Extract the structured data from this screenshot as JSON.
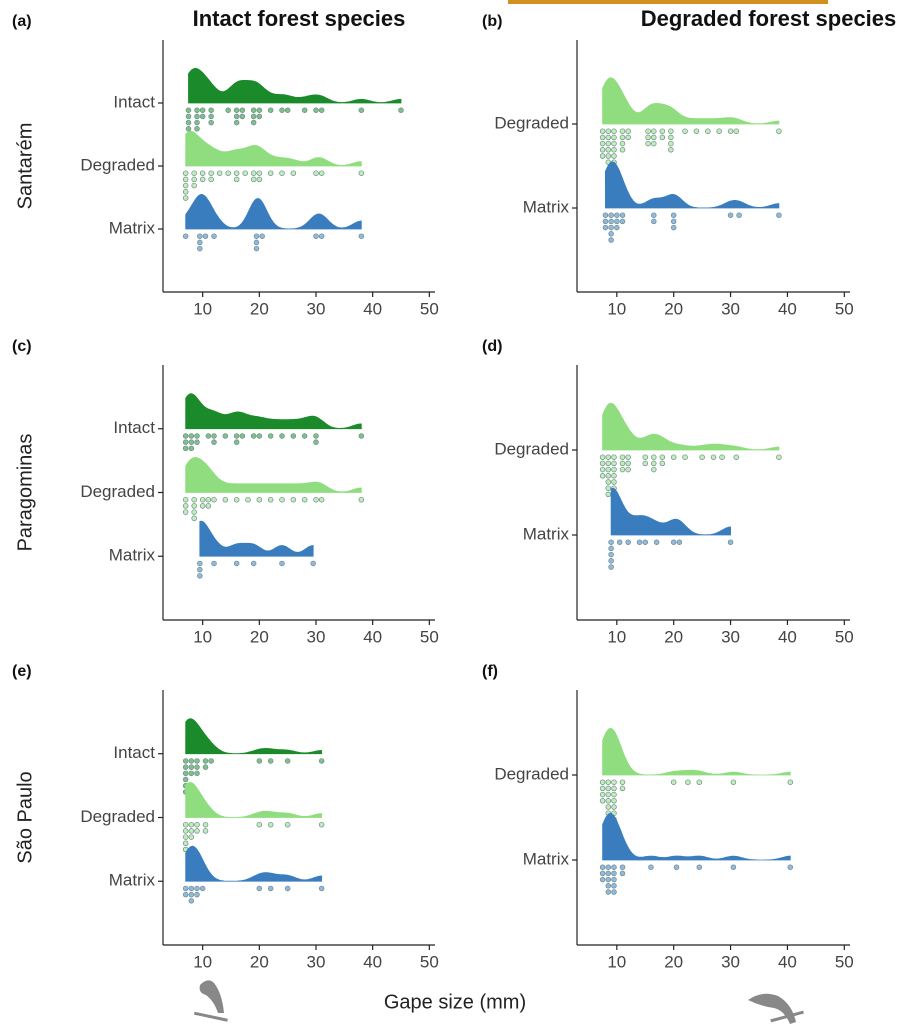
{
  "xlabel": "Gape size (mm)",
  "chart_data": [
    {
      "type": "raincloud",
      "panel_label": "(a)",
      "title": "Intact forest species",
      "ylabel": "Santarém",
      "xlim": [
        3,
        51
      ],
      "xticks": [
        10,
        20,
        30,
        40,
        50
      ],
      "series": [
        {
          "name": "Intact",
          "color": "#1a8a2a",
          "values": [
            7.5,
            7.5,
            7.5,
            7.5,
            7.5,
            9,
            9,
            9,
            9,
            10,
            10,
            11.5,
            11.5,
            11.5,
            14.5,
            16,
            16,
            16,
            17,
            17,
            19,
            19,
            19,
            20,
            20,
            22,
            24,
            25,
            28,
            30,
            31,
            38,
            45
          ]
        },
        {
          "name": "Degraded",
          "color": "#90dd7f",
          "values": [
            7,
            7,
            7,
            7,
            7,
            8.5,
            8.5,
            8.5,
            10,
            10,
            11.5,
            11.5,
            13,
            14.5,
            16,
            16,
            17.5,
            19,
            19,
            20,
            20,
            22,
            24,
            26,
            30,
            31,
            38
          ]
        },
        {
          "name": "Matrix",
          "color": "#3a7dbf",
          "values": [
            7,
            9.5,
            9.5,
            9.5,
            10.5,
            12,
            19.5,
            19.5,
            19.5,
            20.5,
            30,
            31,
            38
          ]
        }
      ]
    },
    {
      "type": "raincloud",
      "panel_label": "(b)",
      "title": "Degraded forest species",
      "xlim": [
        3,
        51
      ],
      "xticks": [
        10,
        20,
        30,
        40,
        50
      ],
      "series": [
        {
          "name": "Degraded",
          "color": "#90dd7f",
          "values": [
            7.5,
            7.5,
            7.5,
            7.5,
            7.5,
            8.5,
            8.5,
            8.5,
            8.5,
            8.5,
            8.5,
            9.5,
            9.5,
            9.5,
            9.5,
            9.5,
            9.5,
            11,
            11,
            11,
            11,
            12,
            12,
            15.5,
            15.5,
            15.5,
            16.5,
            16.5,
            16.5,
            18,
            18,
            19.5,
            19.5,
            19.5,
            19.5,
            22,
            24,
            26,
            28,
            30,
            31,
            38.5
          ]
        },
        {
          "name": "Matrix",
          "color": "#3a7dbf",
          "values": [
            8,
            8,
            8,
            9,
            9,
            9,
            9,
            9,
            10,
            10,
            10,
            11,
            11,
            16.5,
            16.5,
            20,
            20,
            20,
            30,
            31.5,
            38.5
          ]
        }
      ]
    },
    {
      "type": "raincloud",
      "panel_label": "(c)",
      "ylabel": "Paragominas",
      "xlim": [
        3,
        51
      ],
      "xticks": [
        10,
        20,
        30,
        40,
        50
      ],
      "series": [
        {
          "name": "Intact",
          "color": "#1a8a2a",
          "values": [
            7,
            7,
            7,
            8,
            8,
            8,
            9,
            9,
            11,
            12,
            12,
            14,
            16,
            16,
            17,
            19,
            20,
            22,
            24,
            26,
            28,
            30,
            30,
            38
          ]
        },
        {
          "name": "Degraded",
          "color": "#90dd7f",
          "values": [
            7,
            7,
            7,
            8.5,
            8.5,
            8.5,
            8.5,
            10,
            10,
            11,
            11,
            12,
            14,
            16,
            18,
            20,
            22,
            24,
            26,
            28,
            30,
            31,
            38
          ]
        },
        {
          "name": "Matrix",
          "color": "#3a7dbf",
          "values": [
            9.5,
            9.5,
            9.5,
            12,
            16,
            19,
            24,
            29.5
          ]
        }
      ]
    },
    {
      "type": "raincloud",
      "panel_label": "(d)",
      "xlim": [
        3,
        51
      ],
      "xticks": [
        10,
        20,
        30,
        40,
        50
      ],
      "series": [
        {
          "name": "Degraded",
          "color": "#90dd7f",
          "values": [
            7.5,
            7.5,
            7.5,
            7.5,
            8.5,
            8.5,
            8.5,
            8.5,
            8.5,
            8.5,
            8.5,
            9.5,
            9.5,
            9.5,
            9.5,
            9.5,
            9.5,
            11,
            11,
            11,
            12,
            12,
            12,
            15,
            15,
            16.5,
            16.5,
            16.5,
            18,
            18,
            20,
            22,
            25,
            27,
            28.5,
            31,
            38.5
          ]
        },
        {
          "name": "Matrix",
          "color": "#3a7dbf",
          "values": [
            9,
            9,
            9,
            9,
            9,
            10.5,
            12,
            14,
            15,
            17,
            20,
            21,
            30
          ]
        }
      ]
    },
    {
      "type": "raincloud",
      "panel_label": "(e)",
      "ylabel": "São Paulo",
      "xlim": [
        3,
        51
      ],
      "xticks": [
        10,
        20,
        30,
        40,
        50
      ],
      "series": [
        {
          "name": "Intact",
          "color": "#1a8a2a",
          "values": [
            7,
            7,
            7,
            7,
            7,
            7,
            8,
            8,
            8,
            9,
            9,
            9,
            10.5,
            10.5,
            11.5,
            20,
            22,
            25,
            31
          ]
        },
        {
          "name": "Degraded",
          "color": "#90dd7f",
          "values": [
            7,
            7,
            7,
            7,
            7,
            8,
            8,
            8,
            9,
            9,
            10.5,
            10.5,
            20,
            22,
            25,
            31
          ]
        },
        {
          "name": "Matrix",
          "color": "#3a7dbf",
          "values": [
            7,
            7,
            8,
            8,
            8,
            9,
            9,
            10,
            20,
            22,
            25,
            31
          ]
        }
      ]
    },
    {
      "type": "raincloud",
      "panel_label": "(f)",
      "xlim": [
        3,
        51
      ],
      "xticks": [
        10,
        20,
        30,
        40,
        50
      ],
      "series": [
        {
          "name": "Degraded",
          "color": "#90dd7f",
          "values": [
            7.5,
            7.5,
            7.5,
            7.5,
            8.5,
            8.5,
            8.5,
            8.5,
            8.5,
            8.5,
            9.5,
            9.5,
            9.5,
            9.5,
            9.5,
            9.5,
            9.5,
            9.5,
            11,
            11,
            20,
            22.5,
            24.5,
            30.5,
            40.5
          ]
        },
        {
          "name": "Matrix",
          "color": "#3a7dbf",
          "values": [
            7.5,
            7.5,
            7.5,
            8.5,
            8.5,
            8.5,
            8.5,
            8.5,
            9.5,
            9.5,
            9.5,
            9.5,
            9.5,
            11,
            11,
            16,
            20.5,
            24.5,
            30.5,
            40.5
          ]
        }
      ]
    }
  ]
}
